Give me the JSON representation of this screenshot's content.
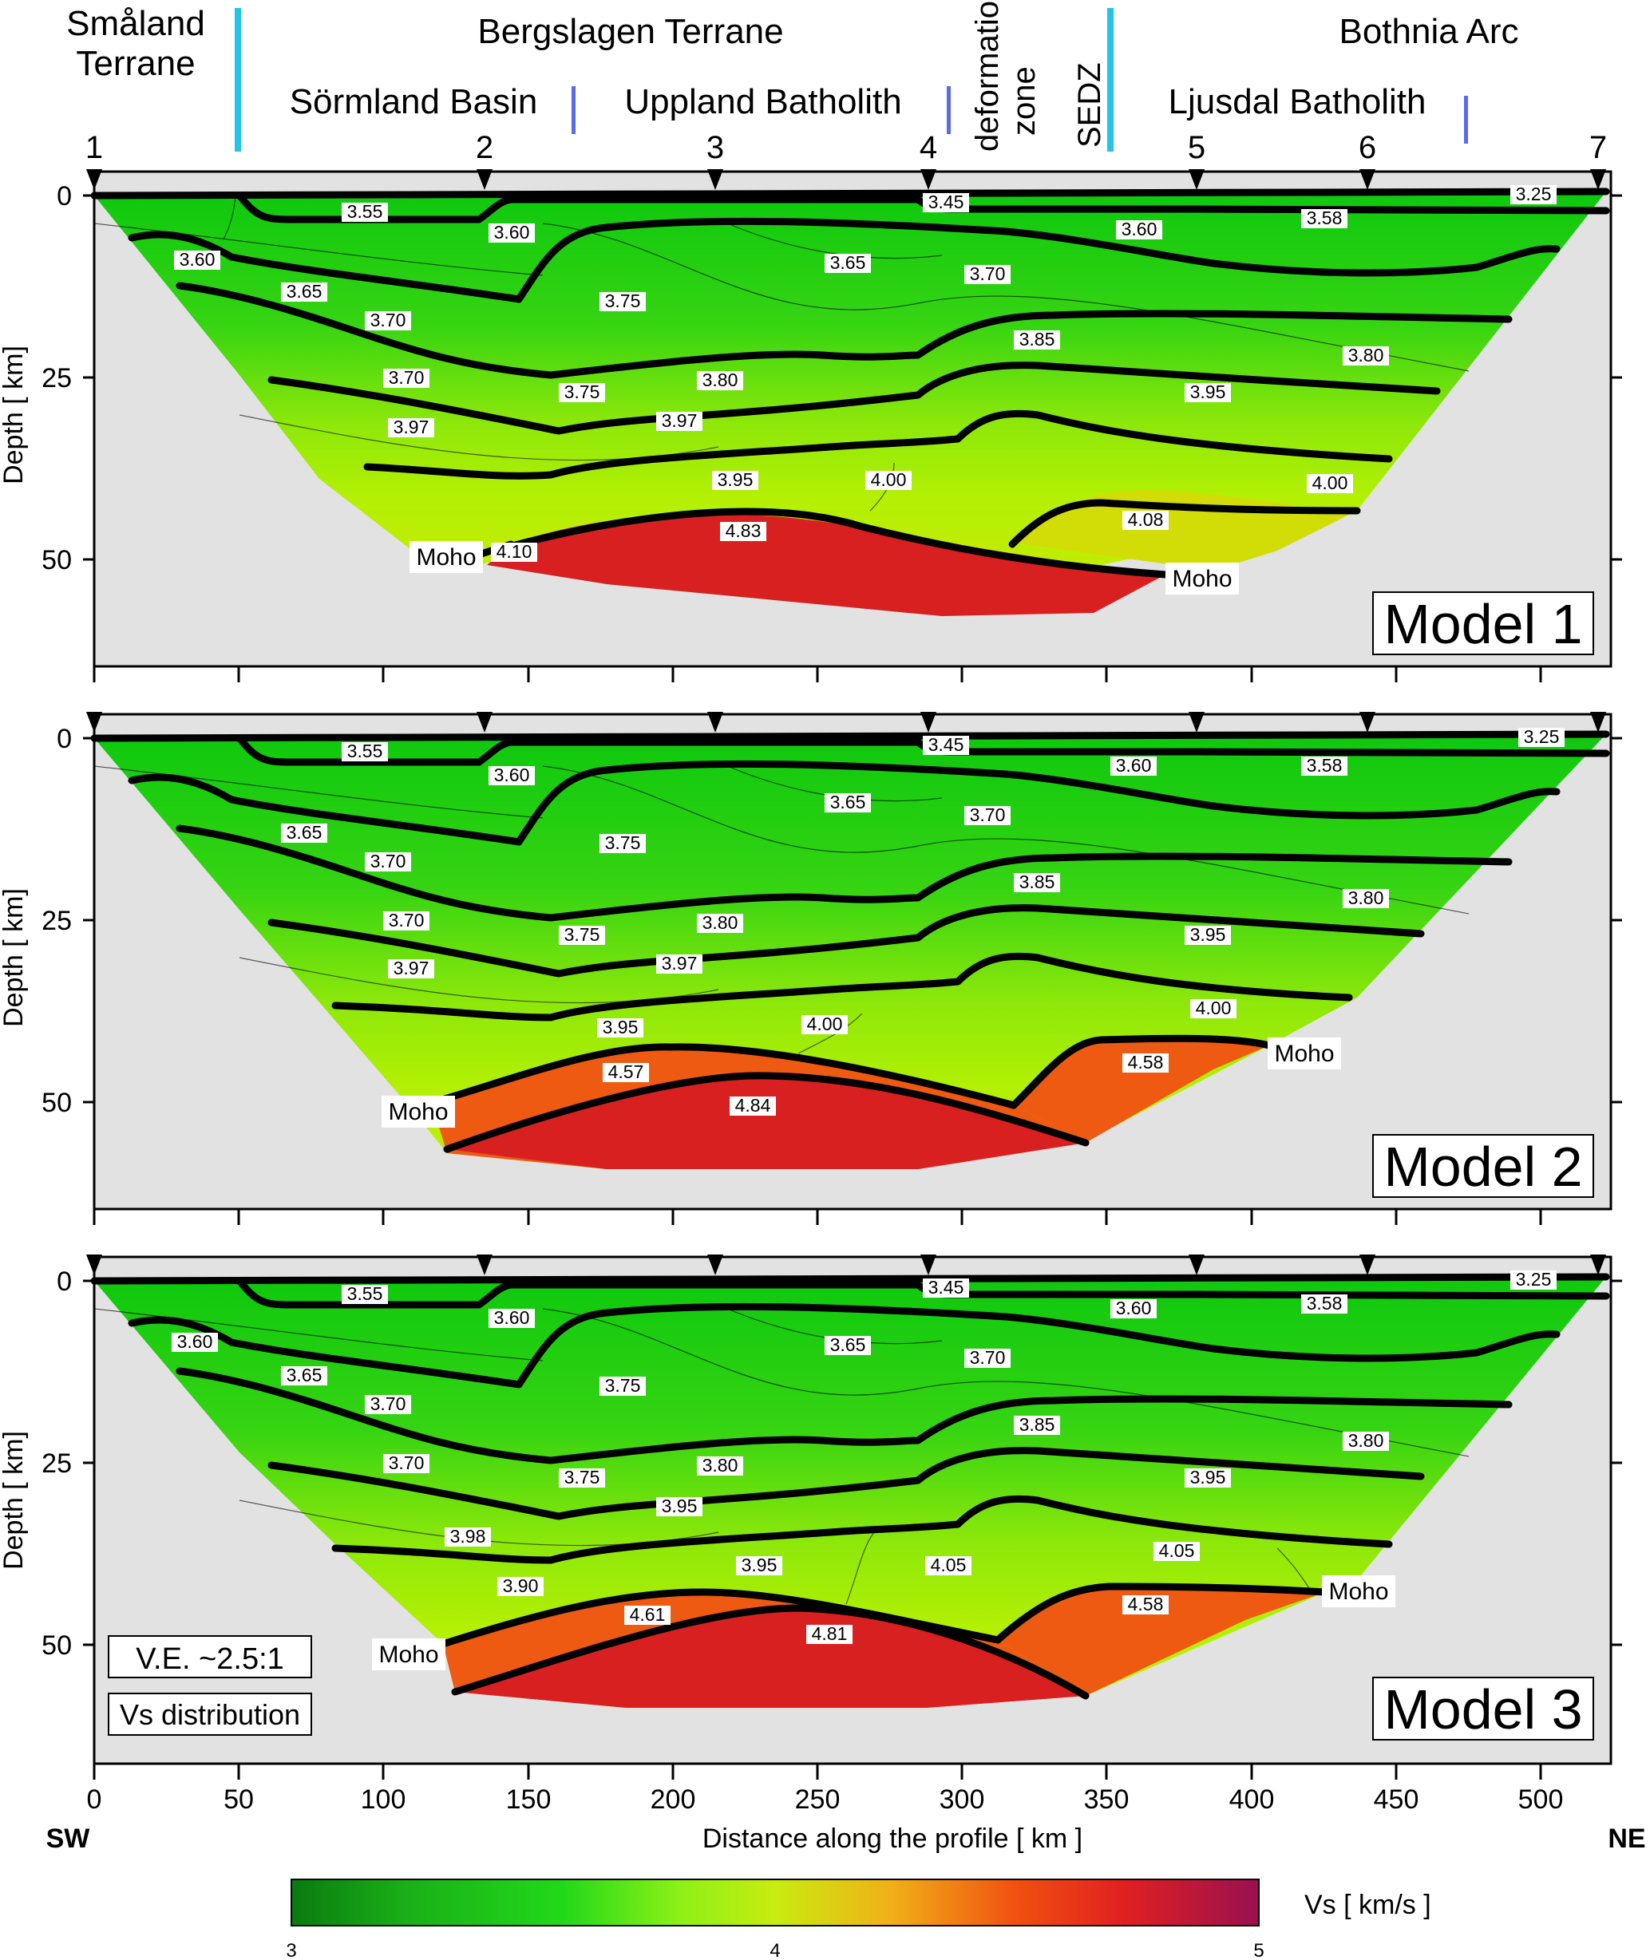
{
  "header": {
    "terranes": [
      {
        "label": "Småland",
        "label2": "Terrane"
      },
      {
        "label": "Bergslagen Terrane"
      },
      {
        "label": "Bothnia Arc"
      }
    ],
    "subunits": [
      {
        "label": "Sörmland Basin"
      },
      {
        "label": "Uppland Batholith"
      },
      {
        "label": "deformation",
        "label2": "zone"
      },
      {
        "label": "SEDZ"
      },
      {
        "label": "Ljusdal Batholith"
      }
    ],
    "stations": [
      "1",
      "2",
      "3",
      "4",
      "5",
      "6",
      "7"
    ]
  },
  "colors": {
    "terrane_boundary": "#22c4e8",
    "subunit_boundary": "#5a6be8",
    "green": "#10c410",
    "yellow_green": "#a6f000",
    "orange": "#f26010",
    "red": "#d42020",
    "basement": "#e2e2e2"
  },
  "axes": {
    "y_label": "Depth  [ km]",
    "y_ticks": [
      "0",
      "25",
      "50"
    ],
    "x_label": "Distance along the profile [ km ]",
    "x_ticks": [
      "0",
      "50",
      "100",
      "150",
      "200",
      "250",
      "300",
      "350",
      "400",
      "450",
      "500"
    ],
    "left_end": "SW",
    "right_end": "NE"
  },
  "panels": [
    {
      "title": "Model 1",
      "labels": [
        "3.55",
        "3.45",
        "3.25",
        "3.60",
        "3.60",
        "3.58",
        "3.60",
        "3.65",
        "3.70",
        "3.65",
        "3.75",
        "3.70",
        "3.85",
        "3.80",
        "3.70",
        "3.75",
        "3.80",
        "3.95",
        "3.97",
        "3.97",
        "3.95",
        "4.00",
        "4.00",
        "4.08",
        "4.83",
        "4.10"
      ],
      "moho": [
        "Moho",
        "Moho"
      ]
    },
    {
      "title": "Model 2",
      "labels": [
        "3.55",
        "3.45",
        "3.25",
        "3.60",
        "3.60",
        "3.58",
        "3.65",
        "3.70",
        "3.65",
        "3.75",
        "3.70",
        "3.85",
        "3.80",
        "3.70",
        "3.75",
        "3.80",
        "3.95",
        "3.97",
        "3.97",
        "4.00",
        "3.95",
        "4.00",
        "4.57",
        "4.84",
        "4.58"
      ],
      "moho": [
        "Moho",
        "Moho"
      ]
    },
    {
      "title": "Model 3",
      "labels": [
        "3.55",
        "3.45",
        "3.25",
        "3.60",
        "3.60",
        "3.58",
        "3.60",
        "3.65",
        "3.70",
        "3.65",
        "3.75",
        "3.70",
        "3.85",
        "3.80",
        "3.70",
        "3.75",
        "3.80",
        "3.95",
        "3.95",
        "3.98",
        "3.90",
        "3.95",
        "4.05",
        "4.05",
        "4.61",
        "4.81",
        "4.58"
      ],
      "moho": [
        "Moho",
        "Moho"
      ],
      "notes": [
        "V.E. ~2.5:1",
        "Vs distribution"
      ]
    }
  ],
  "colorbar": {
    "label": "Vs [ km/s ]",
    "ticks": [
      "3",
      "4",
      "5"
    ]
  }
}
